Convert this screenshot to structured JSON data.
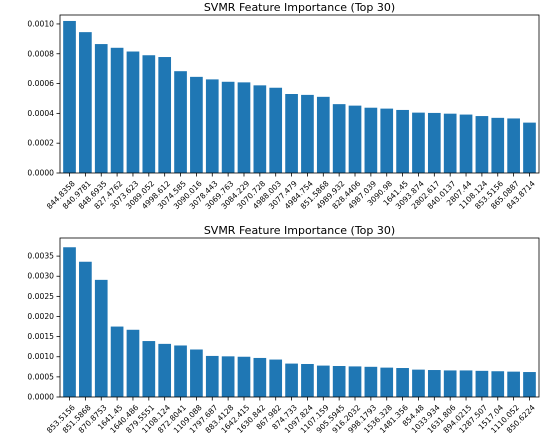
{
  "chart_data": [
    {
      "type": "bar",
      "title": "SVMR Feature Importance (Top 30)",
      "xlabel": "",
      "ylabel": "",
      "ylim": [
        0,
        0.00106
      ],
      "yticks": [
        0.0,
        0.0002,
        0.0004,
        0.0006,
        0.0008,
        0.001
      ],
      "ytick_labels": [
        "0.0000",
        "0.0002",
        "0.0004",
        "0.0006",
        "0.0008",
        "0.0010"
      ],
      "categories": [
        "844.8358",
        "840.9781",
        "848.6935",
        "827.4762",
        "3073.623",
        "3089.052",
        "4998.612",
        "3074.585",
        "3090.016",
        "3078.443",
        "3069.763",
        "3084.229",
        "3070.728",
        "4988.003",
        "3077.479",
        "4984.754",
        "851.5868",
        "4989.932",
        "828.4406",
        "4987.039",
        "3090.98",
        "1641.45",
        "3093.874",
        "2802.617",
        "840.0137",
        "2807.44",
        "1108.124",
        "853.5156",
        "865.0887",
        "843.8714"
      ],
      "values": [
        0.00102,
        0.000945,
        0.000865,
        0.00084,
        0.000815,
        0.00079,
        0.000778,
        0.000683,
        0.000645,
        0.000628,
        0.000612,
        0.000608,
        0.000588,
        0.000572,
        0.00053,
        0.000524,
        0.000511,
        0.000462,
        0.000452,
        0.000438,
        0.000432,
        0.000423,
        0.000405,
        0.000403,
        0.000398,
        0.000392,
        0.000382,
        0.00037,
        0.000366,
        0.000338
      ],
      "color": "#1f77b4",
      "grid": false
    },
    {
      "type": "bar",
      "title": "SVMR Feature Importance (Top 30)",
      "xlabel": "",
      "ylabel": "",
      "ylim": [
        0,
        0.00395
      ],
      "yticks": [
        0.0,
        0.0005,
        0.001,
        0.0015,
        0.002,
        0.0025,
        0.003,
        0.0035
      ],
      "ytick_labels": [
        "0.0000",
        "0.0005",
        "0.0010",
        "0.0015",
        "0.0020",
        "0.0025",
        "0.0030",
        "0.0035"
      ],
      "categories": [
        "853.5156",
        "851.5868",
        "870.8753",
        "1641.45",
        "1640.486",
        "879.5551",
        "1108.124",
        "872.8041",
        "1109.088",
        "1797.687",
        "883.4128",
        "1642.415",
        "1630.842",
        "867.982",
        "874.733",
        "1097.824",
        "1107.159",
        "905.5945",
        "916.2032",
        "998.1793",
        "1536.328",
        "1481.356",
        "854.48",
        "1033.934",
        "1631.806",
        "894.0215",
        "1287.507",
        "1517.04",
        "1110.052",
        "850.6224"
      ],
      "values": [
        0.00372,
        0.00336,
        0.00291,
        0.00175,
        0.00167,
        0.00139,
        0.00132,
        0.00128,
        0.00118,
        0.00102,
        0.00101,
        0.001,
        0.00097,
        0.00093,
        0.00083,
        0.00082,
        0.00078,
        0.00077,
        0.00076,
        0.00075,
        0.00073,
        0.00072,
        0.00068,
        0.00067,
        0.00066,
        0.00066,
        0.00065,
        0.00064,
        0.00063,
        0.00062
      ],
      "color": "#1f77b4",
      "grid": false
    }
  ]
}
